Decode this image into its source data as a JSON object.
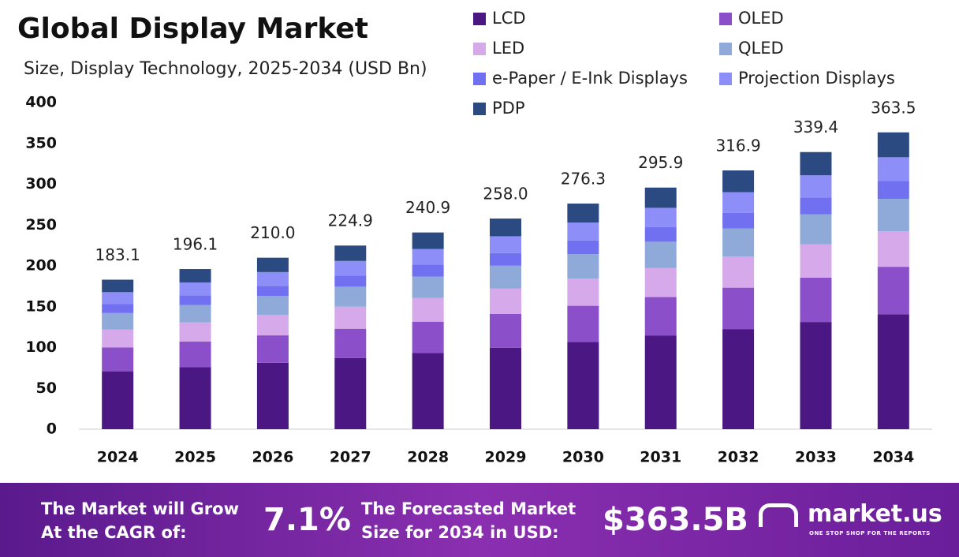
{
  "chart_data": {
    "type": "stacked_bar",
    "title": "Global Display Market",
    "subtitle": "Size, Display Technology, 2025-2034 (USD Bn)",
    "categories": [
      "2024",
      "2025",
      "2026",
      "2027",
      "2028",
      "2029",
      "2030",
      "2031",
      "2032",
      "2033",
      "2034"
    ],
    "series": [
      {
        "name": "LCD",
        "color": "#4b1883",
        "values": [
          70.9,
          75.9,
          81.3,
          87.0,
          93.2,
          99.8,
          106.9,
          114.5,
          122.6,
          131.3,
          140.7
        ]
      },
      {
        "name": "OLED",
        "color": "#8b4fc9",
        "values": [
          29.3,
          31.4,
          33.6,
          36.0,
          38.5,
          41.3,
          44.2,
          47.3,
          50.7,
          54.3,
          58.2
        ]
      },
      {
        "name": "LED",
        "color": "#d5a9ea",
        "values": [
          22.0,
          23.5,
          25.2,
          27.0,
          28.9,
          31.0,
          33.2,
          35.5,
          38.0,
          40.7,
          43.6
        ]
      },
      {
        "name": "QLED",
        "color": "#8faad9",
        "values": [
          20.0,
          21.4,
          22.9,
          24.5,
          26.3,
          28.1,
          30.1,
          32.3,
          34.5,
          37.0,
          39.6
        ]
      },
      {
        "name": "e-Paper / E-Ink Displays",
        "color": "#7170f1",
        "values": [
          11.0,
          11.8,
          12.6,
          13.5,
          14.5,
          15.5,
          16.6,
          17.8,
          19.0,
          20.4,
          21.8
        ]
      },
      {
        "name": "Projection Displays",
        "color": "#8e8ef8",
        "values": [
          14.6,
          15.7,
          16.8,
          18.0,
          19.3,
          20.6,
          22.1,
          23.7,
          25.4,
          27.2,
          29.1
        ]
      },
      {
        "name": "PDP",
        "color": "#2c4a82",
        "values": [
          15.3,
          16.4,
          17.6,
          18.9,
          20.2,
          21.7,
          23.2,
          24.8,
          26.7,
          28.5,
          30.5
        ]
      }
    ],
    "totals": {
      "values": [
        183.1,
        196.1,
        210,
        224.9,
        240.9,
        258,
        276.3,
        295.9,
        316.9,
        339.4,
        363.5
      ],
      "value_labels": [
        "183.1",
        "196.1",
        "210.0",
        "224.9",
        "240.9",
        "258.0",
        "276.3",
        "295.9",
        "316.9",
        "339.4",
        "363.5"
      ]
    },
    "ylim": [
      0,
      400
    ],
    "yticks": [
      0,
      50,
      100,
      150,
      200,
      250,
      300,
      350,
      400
    ],
    "grid": false
  },
  "footer": {
    "cagr_text": "The Market will Grow At the CAGR of:",
    "cagr_value": "7.1%",
    "forecast_text": "The Forecasted Market Size for 2034 in USD:",
    "forecast_value": "$363.5B",
    "brand": "market.us",
    "tagline": "ONE STOP SHOP FOR THE REPORTS"
  }
}
